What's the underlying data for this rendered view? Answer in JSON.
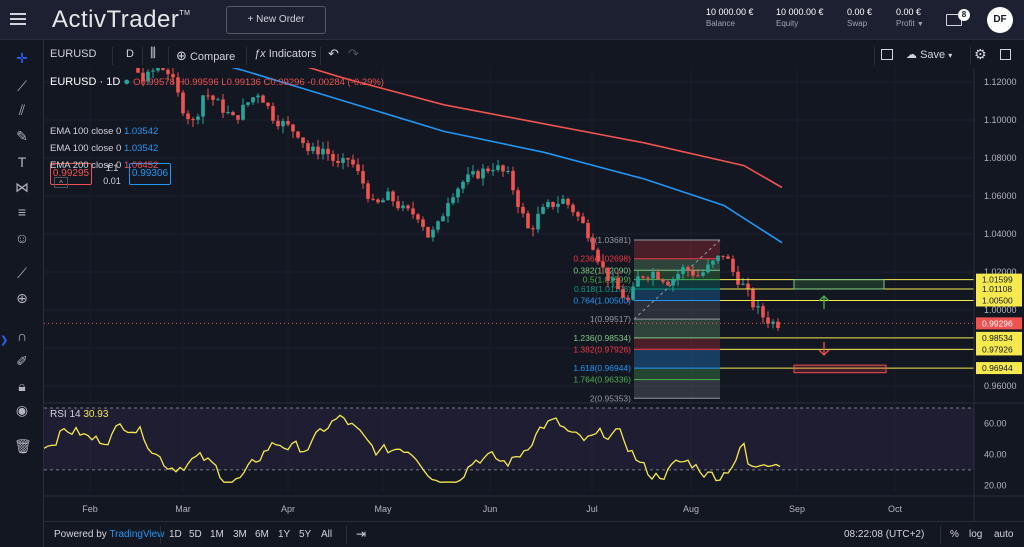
{
  "header": {
    "logo_text": "ActivTrader",
    "logo_tm": "TM",
    "new_order_label": "+  New Order",
    "account": [
      {
        "value": "10 000.00 €",
        "label": "Balance"
      },
      {
        "value": "10 000.00 €",
        "label": "Equity"
      },
      {
        "value": "0.00 €",
        "label": "Swap"
      },
      {
        "value": "0.00 €",
        "label": "Profit"
      }
    ],
    "notifications_count": "8",
    "avatar_initials": "DF"
  },
  "toolbar": {
    "symbol": "EURUSD",
    "interval": "D",
    "compare_label": "Compare",
    "indicators_label": "Indicators",
    "save_label": "Save"
  },
  "legend": {
    "title": "EURUSD · 1D",
    "ohlc": "O0.99578 H0.99596 L0.99136 C0.99296 -0.00284 (-0.29%)",
    "sell_price": "0.99295",
    "spread_top": "1.1",
    "spread_bottom": "0.01",
    "buy_price": "0.99306",
    "indicators": [
      {
        "label": "EMA 100 close 0",
        "value": "1.03542",
        "color": "#2196f3"
      },
      {
        "label": "EMA 100 close 0",
        "value": "1.03542",
        "color": "#2196f3"
      },
      {
        "label": "EMA 200 close 0",
        "value": "1.06452",
        "color": "#ef5350"
      }
    ],
    "collapse_symbol": "^"
  },
  "chart_data": {
    "type": "candlestick",
    "symbol": "EURUSD",
    "timeframe": "1D",
    "price_axis_ticks": [
      "1.12000",
      "1.10000",
      "1.08000",
      "1.06000",
      "1.04000",
      "1.02000",
      "1.00000",
      "0.98000",
      "0.96000"
    ],
    "time_axis_ticks": [
      "Feb",
      "Mar",
      "Apr",
      "May",
      "Jun",
      "Jul",
      "Aug",
      "Sep",
      "Oct"
    ],
    "current_price": "0.99296",
    "price_tags": [
      {
        "value": "1.01599",
        "color": "#f5e94e"
      },
      {
        "value": "1.01108",
        "color": "#f5e94e"
      },
      {
        "value": "1.00500",
        "color": "#f5e94e"
      },
      {
        "value": "0.99296",
        "color": "#ef5350"
      },
      {
        "value": "0.98534",
        "color": "#f5e94e"
      },
      {
        "value": "0.97926",
        "color": "#f5e94e"
      },
      {
        "value": "0.96944",
        "color": "#f5e94e"
      }
    ],
    "fib_levels": [
      {
        "label": "0(1.03681)",
        "color": "#9598a1"
      },
      {
        "label": "0.236(1.02698)",
        "color": "#f23645"
      },
      {
        "label": "0.382(1.02090)",
        "color": "#81c784"
      },
      {
        "label": "0.5(1.01599)",
        "color": "#4caf50"
      },
      {
        "label": "0.618(1.01108)",
        "color": "#089981"
      },
      {
        "label": "0.764(1.00500)",
        "color": "#2196f3"
      },
      {
        "label": "1(0.99517)",
        "color": "#9598a1"
      },
      {
        "label": "1.236(0.98534)",
        "color": "#81c784"
      },
      {
        "label": "1.382(0.97926)",
        "color": "#f23645"
      },
      {
        "label": "1.618(0.96944)",
        "color": "#2196f3"
      },
      {
        "label": "1.764(0.96336)",
        "color": "#4caf50"
      },
      {
        "label": "2(0.95353)",
        "color": "#9598a1"
      }
    ],
    "ema": [
      {
        "name": "EMA 100",
        "color": "#2196f3",
        "last": 1.03542
      },
      {
        "name": "EMA 200",
        "color": "#ef5350",
        "last": 1.06452
      }
    ]
  },
  "rsi": {
    "label": "RSI",
    "period": "14",
    "value": "30.93",
    "axis_ticks": [
      "60.00",
      "40.00",
      "20.00"
    ]
  },
  "bottom": {
    "powered_by": "Powered by",
    "tradingview": "TradingView",
    "ranges": [
      "1D",
      "5D",
      "1M",
      "3M",
      "6M",
      "1Y",
      "5Y",
      "All"
    ],
    "time": "08:22:08 (UTC+2)",
    "percent": "%",
    "log": "log",
    "auto": "auto"
  }
}
